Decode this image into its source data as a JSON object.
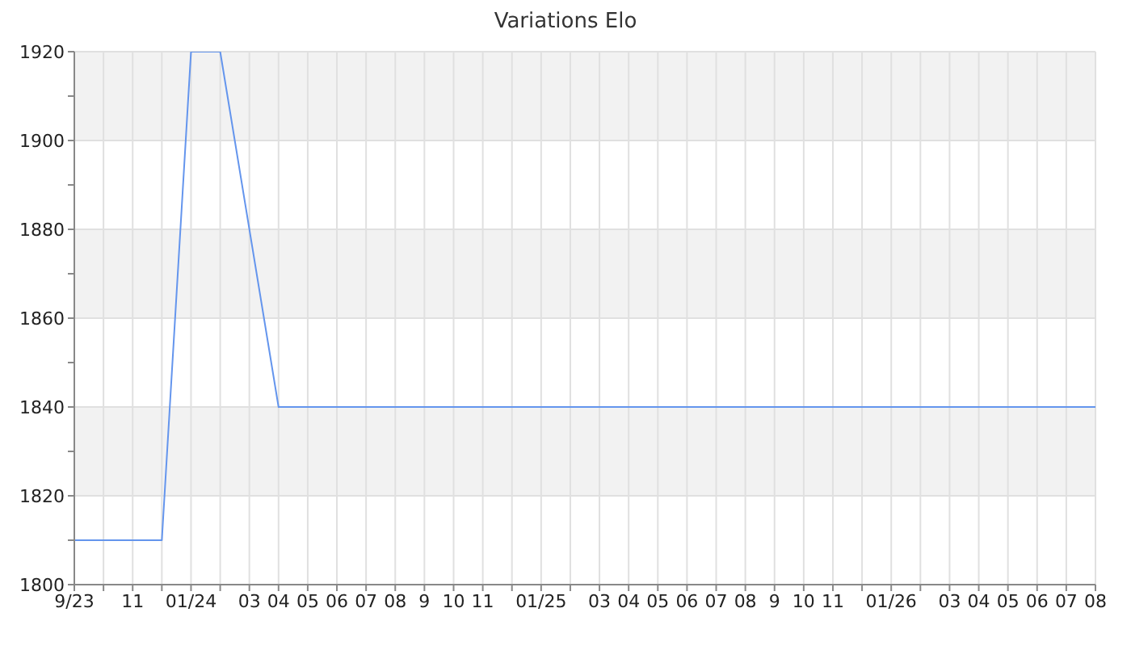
{
  "chart_data": {
    "type": "line",
    "title": "Variations Elo",
    "x": [
      "2023-09",
      "2023-12",
      "2024-01",
      "2024-02",
      "2024-04",
      "2026-08"
    ],
    "series": [
      {
        "color": "#6495ed",
        "values": [
          1810,
          1810,
          1920,
          1920,
          1840,
          1840
        ]
      }
    ],
    "xlim": [
      "2023-09",
      "2026-08"
    ],
    "xticks": [
      {
        "value": "2023-09",
        "label": "9/23"
      },
      {
        "value": "2023-10",
        "label": null
      },
      {
        "value": "2023-11",
        "label": "11"
      },
      {
        "value": "2023-12",
        "label": null
      },
      {
        "value": "2024-01",
        "label": "01/24"
      },
      {
        "value": "2024-02",
        "label": null
      },
      {
        "value": "2024-03",
        "label": "03"
      },
      {
        "value": "2024-04",
        "label": "04"
      },
      {
        "value": "2024-05",
        "label": "05"
      },
      {
        "value": "2024-06",
        "label": "06"
      },
      {
        "value": "2024-07",
        "label": "07"
      },
      {
        "value": "2024-08",
        "label": "08"
      },
      {
        "value": "2024-09",
        "label": "9"
      },
      {
        "value": "2024-10",
        "label": "10"
      },
      {
        "value": "2024-11",
        "label": "11"
      },
      {
        "value": "2024-12",
        "label": null
      },
      {
        "value": "2025-01",
        "label": "01/25"
      },
      {
        "value": "2025-02",
        "label": null
      },
      {
        "value": "2025-03",
        "label": "03"
      },
      {
        "value": "2025-04",
        "label": "04"
      },
      {
        "value": "2025-05",
        "label": "05"
      },
      {
        "value": "2025-06",
        "label": "06"
      },
      {
        "value": "2025-07",
        "label": "07"
      },
      {
        "value": "2025-08",
        "label": "08"
      },
      {
        "value": "2025-09",
        "label": "9"
      },
      {
        "value": "2025-10",
        "label": "10"
      },
      {
        "value": "2025-11",
        "label": "11"
      },
      {
        "value": "2025-12",
        "label": null
      },
      {
        "value": "2026-01",
        "label": "01/26"
      },
      {
        "value": "2026-02",
        "label": null
      },
      {
        "value": "2026-03",
        "label": "03"
      },
      {
        "value": "2026-04",
        "label": "04"
      },
      {
        "value": "2026-05",
        "label": "05"
      },
      {
        "value": "2026-06",
        "label": "06"
      },
      {
        "value": "2026-07",
        "label": "07"
      },
      {
        "value": "2026-08",
        "label": "08"
      }
    ],
    "ylim": [
      1800,
      1920
    ],
    "yticks": [
      1800,
      {
        "value": 1810,
        "label": null
      },
      1820,
      {
        "value": 1830,
        "label": null
      },
      1840,
      {
        "value": 1850,
        "label": null
      },
      1860,
      {
        "value": 1870,
        "label": null
      },
      1880,
      {
        "value": 1890,
        "label": null
      },
      1900,
      {
        "value": 1910,
        "label": null
      },
      1920
    ],
    "grid": true,
    "marker": "none",
    "line_style": "solid"
  }
}
